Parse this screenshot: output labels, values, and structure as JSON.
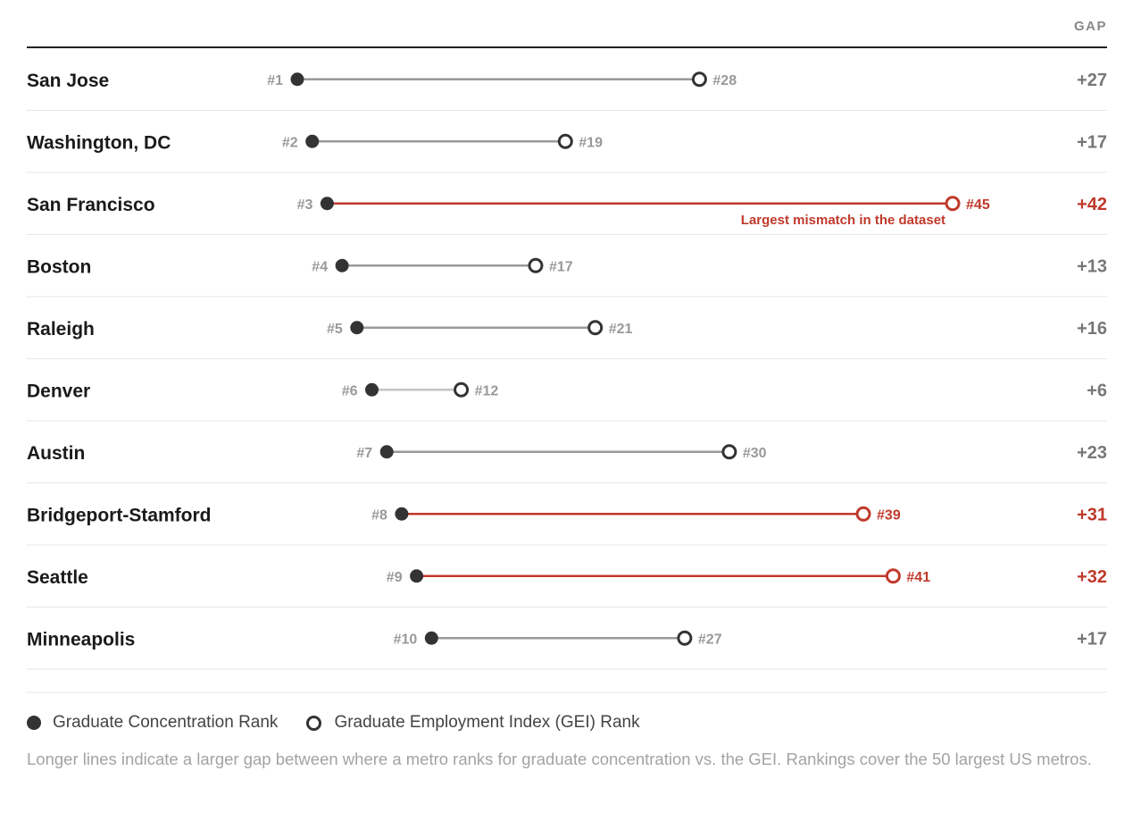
{
  "chart_data": {
    "type": "dumbbell",
    "gap_header": "GAP",
    "x_domain": [
      1,
      45
    ],
    "series": [
      {
        "name": "Graduate Concentration Rank",
        "marker": "filled-circle"
      },
      {
        "name": "Graduate Employment Index (GEI) Rank",
        "marker": "open-circle"
      }
    ],
    "rows": [
      {
        "metro": "San Jose",
        "concentration_rank": 1,
        "gei_rank": 28,
        "start_label": "#1",
        "end_label": "#28",
        "gap_label": "+27",
        "highlight": false
      },
      {
        "metro": "Washington, DC",
        "concentration_rank": 2,
        "gei_rank": 19,
        "start_label": "#2",
        "end_label": "#19",
        "gap_label": "+17",
        "highlight": false
      },
      {
        "metro": "San Francisco",
        "concentration_rank": 3,
        "gei_rank": 45,
        "start_label": "#3",
        "end_label": "#45",
        "gap_label": "+42",
        "highlight": true,
        "annotation": "Largest mismatch in the dataset"
      },
      {
        "metro": "Boston",
        "concentration_rank": 4,
        "gei_rank": 17,
        "start_label": "#4",
        "end_label": "#17",
        "gap_label": "+13",
        "highlight": false
      },
      {
        "metro": "Raleigh",
        "concentration_rank": 5,
        "gei_rank": 21,
        "start_label": "#5",
        "end_label": "#21",
        "gap_label": "+16",
        "highlight": false
      },
      {
        "metro": "Denver",
        "concentration_rank": 6,
        "gei_rank": 12,
        "start_label": "#6",
        "end_label": "#12",
        "gap_label": "+6",
        "highlight": false
      },
      {
        "metro": "Austin",
        "concentration_rank": 7,
        "gei_rank": 30,
        "start_label": "#7",
        "end_label": "#30",
        "gap_label": "+23",
        "highlight": false
      },
      {
        "metro": "Bridgeport-Stamford",
        "concentration_rank": 8,
        "gei_rank": 39,
        "start_label": "#8",
        "end_label": "#39",
        "gap_label": "+31",
        "highlight": true
      },
      {
        "metro": "Seattle",
        "concentration_rank": 9,
        "gei_rank": 41,
        "start_label": "#9",
        "end_label": "#41",
        "gap_label": "+32",
        "highlight": true
      },
      {
        "metro": "Minneapolis",
        "concentration_rank": 10,
        "gei_rank": 27,
        "start_label": "#10",
        "end_label": "#27",
        "gap_label": "+17",
        "highlight": false
      }
    ],
    "colors": {
      "dot": "#333333",
      "highlight": "#c0392b",
      "line_long": "#999999",
      "line_short": "#c4c4c4",
      "rank_label": "#999999",
      "gap_label": "#777777",
      "metro_label": "#1a1a1a"
    }
  },
  "legend": {
    "concentration_label": "Graduate Concentration Rank",
    "gei_label": "Graduate Employment Index (GEI) Rank"
  },
  "note": "Longer lines indicate a larger gap between where a metro ranks for graduate concentration vs. the GEI. Rankings cover the 50 largest US metros."
}
